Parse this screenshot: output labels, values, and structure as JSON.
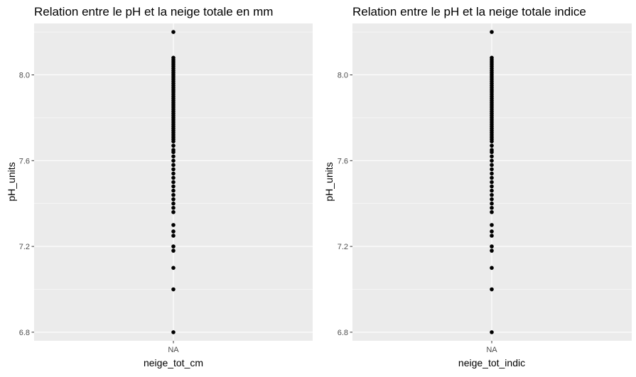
{
  "chart_data": [
    {
      "type": "scatter",
      "title": "Relation entre le pH et la neige totale en mm",
      "xlabel": "neige_tot_cm",
      "ylabel": "pH_units",
      "x_categories": [
        "NA"
      ],
      "yticks": [
        "6.8",
        "7.2",
        "7.6",
        "8.0"
      ],
      "ylim": [
        6.76,
        8.24
      ],
      "grid": true,
      "points_y": [
        6.8,
        7.0,
        7.1,
        7.18,
        7.2,
        7.25,
        7.27,
        7.3,
        7.36,
        7.38,
        7.4,
        7.42,
        7.44,
        7.46,
        7.48,
        7.5,
        7.52,
        7.54,
        7.56,
        7.58,
        7.6,
        7.62,
        7.64,
        7.65,
        7.67,
        7.69,
        7.7,
        7.71,
        7.72,
        7.73,
        7.74,
        7.75,
        7.76,
        7.77,
        7.78,
        7.79,
        7.8,
        7.81,
        7.82,
        7.83,
        7.84,
        7.85,
        7.86,
        7.87,
        7.88,
        7.89,
        7.9,
        7.91,
        7.92,
        7.93,
        7.94,
        7.95,
        7.96,
        7.97,
        7.98,
        7.99,
        8.0,
        8.01,
        8.02,
        8.03,
        8.04,
        8.05,
        8.06,
        8.07,
        8.08,
        8.2
      ]
    },
    {
      "type": "scatter",
      "title": "Relation entre le pH et la neige totale indice",
      "xlabel": "neige_tot_indic",
      "ylabel": "pH_units",
      "x_categories": [
        "NA"
      ],
      "yticks": [
        "6.8",
        "7.2",
        "7.6",
        "8.0"
      ],
      "ylim": [
        6.76,
        8.24
      ],
      "grid": true,
      "points_y": [
        6.8,
        7.0,
        7.1,
        7.18,
        7.2,
        7.25,
        7.27,
        7.3,
        7.36,
        7.38,
        7.4,
        7.42,
        7.44,
        7.46,
        7.48,
        7.5,
        7.52,
        7.54,
        7.56,
        7.58,
        7.6,
        7.62,
        7.64,
        7.65,
        7.67,
        7.69,
        7.7,
        7.71,
        7.72,
        7.73,
        7.74,
        7.75,
        7.76,
        7.77,
        7.78,
        7.79,
        7.8,
        7.81,
        7.82,
        7.83,
        7.84,
        7.85,
        7.86,
        7.87,
        7.88,
        7.89,
        7.9,
        7.91,
        7.92,
        7.93,
        7.94,
        7.95,
        7.96,
        7.97,
        7.98,
        7.99,
        8.0,
        8.01,
        8.02,
        8.03,
        8.04,
        8.05,
        8.06,
        8.07,
        8.08,
        8.2
      ]
    }
  ],
  "colors": {
    "panel_background": "#ebebeb",
    "grid_major": "#ffffff",
    "point": "#000000",
    "tick_text": "#4d4d4d"
  }
}
